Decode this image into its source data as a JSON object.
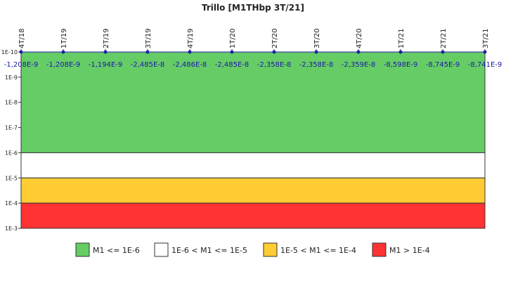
{
  "chart_data": {
    "type": "line",
    "title": "Trillo [M1THbp 3T/21]",
    "categories": [
      "4T/18",
      "1T/19",
      "2T/19",
      "3T/19",
      "4T/19",
      "1T/20",
      "2T/20",
      "3T/20",
      "4T/20",
      "1T/21",
      "2T/21",
      "3T/21"
    ],
    "values": [
      -1.208e-09,
      -1.208e-09,
      -1.194e-09,
      -2.485e-08,
      -2.486e-08,
      -2.485e-08,
      -2.358e-08,
      -2.358e-08,
      -2.359e-08,
      -8.598e-09,
      -8.745e-09,
      -8.741e-09
    ],
    "value_labels": [
      "-1,208E-9",
      "-1,208E-9",
      "-1,194E-9",
      "-2,485E-8",
      "-2,486E-8",
      "-2,485E-8",
      "-2,358E-8",
      "-2,358E-8",
      "-2,359E-8",
      "-8,598E-9",
      "-8,745E-9",
      "-8,741E-9"
    ],
    "color": "#1f1fa8",
    "label_color": "#1a1aa8",
    "log_scale": true,
    "ylim": [
      1e-10,
      0.001
    ],
    "yticks": [
      {
        "value": 1e-10,
        "label": "1E-10"
      },
      {
        "value": 1e-09,
        "label": "1E-9"
      },
      {
        "value": 1e-08,
        "label": "1E-8"
      },
      {
        "value": 1e-07,
        "label": "1E-7"
      },
      {
        "value": 1e-06,
        "label": "1E-6"
      },
      {
        "value": 1e-05,
        "label": "1E-5"
      },
      {
        "value": 0.0001,
        "label": "1E-4"
      },
      {
        "value": 0.001,
        "label": "1E-3"
      }
    ],
    "bands": [
      {
        "name": "M1 <= 1E-6",
        "color": "#66cc66",
        "range": [
          1e-10,
          1e-06
        ]
      },
      {
        "name": "1E-6 < M1 <= 1E-5",
        "color": "#ffffff",
        "range": [
          1e-06,
          1e-05
        ]
      },
      {
        "name": "1E-5 < M1 <= 1E-4",
        "color": "#ffcc33",
        "range": [
          1e-05,
          0.0001
        ]
      },
      {
        "name": "M1 > 1E-4",
        "color": "#ff3333",
        "range": [
          0.0001,
          0.001
        ]
      }
    ],
    "legend": "bottom"
  }
}
